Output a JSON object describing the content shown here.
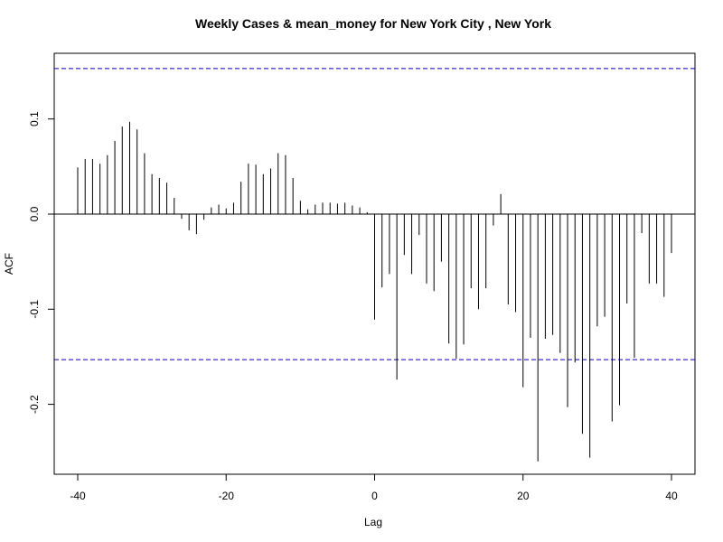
{
  "chart_data": {
    "type": "bar",
    "title": "Weekly Cases & mean_money for New York City , New York",
    "xlabel": "Lag",
    "ylabel": "ACF",
    "xlim": [
      -40,
      40
    ],
    "ylim": [
      -0.27,
      0.18
    ],
    "x_ticks": [
      -40,
      -20,
      0,
      20,
      40
    ],
    "x_tick_labels": [
      "-40",
      "-20",
      "0",
      "20",
      "40"
    ],
    "y_ticks": [
      -0.2,
      -0.1,
      0.0,
      0.1
    ],
    "y_tick_labels": [
      "-0.2",
      "-0.1",
      "0.0",
      "0.1"
    ],
    "confidence_bounds": [
      0.153,
      -0.153
    ],
    "colors": {
      "bars": "#000000",
      "bounds": "#0000CC",
      "zero_line": "#000000"
    },
    "series": [
      {
        "x": [
          -40,
          -39,
          -38,
          -37,
          -36,
          -35,
          -34,
          -33,
          -32,
          -31,
          -30,
          -29,
          -28,
          -27,
          -26,
          -25,
          -24,
          -23,
          -22,
          -21,
          -20,
          -19,
          -18,
          -17,
          -16,
          -15,
          -14,
          -13,
          -12,
          -11,
          -10,
          -9,
          -8,
          -7,
          -6,
          -5,
          -4,
          -3,
          -2,
          -1,
          0,
          1,
          2,
          3,
          4,
          5,
          6,
          7,
          8,
          9,
          10,
          11,
          12,
          13,
          14,
          15,
          16,
          17,
          18,
          19,
          20,
          21,
          22,
          23,
          24,
          25,
          26,
          27,
          28,
          29,
          30,
          31,
          32,
          33,
          34,
          35,
          36,
          37,
          38,
          39,
          40
        ],
        "values": [
          0.049,
          0.058,
          0.058,
          0.053,
          0.062,
          0.077,
          0.092,
          0.097,
          0.089,
          0.064,
          0.042,
          0.038,
          0.033,
          0.017,
          -0.005,
          -0.017,
          -0.021,
          -0.006,
          0.007,
          0.01,
          0.006,
          0.012,
          0.034,
          0.053,
          0.052,
          0.042,
          0.048,
          0.064,
          0.062,
          0.038,
          0.014,
          0.005,
          0.01,
          0.012,
          0.012,
          0.011,
          0.012,
          0.009,
          0.007,
          0.002,
          -0.111,
          -0.077,
          -0.063,
          -0.174,
          -0.043,
          -0.063,
          -0.022,
          -0.073,
          -0.081,
          -0.05,
          -0.136,
          -0.152,
          -0.137,
          -0.078,
          -0.1,
          -0.078,
          -0.012,
          0.021,
          -0.095,
          -0.103,
          -0.182,
          -0.13,
          -0.26,
          -0.131,
          -0.127,
          -0.146,
          -0.203,
          -0.156,
          -0.231,
          -0.256,
          -0.118,
          -0.108,
          -0.218,
          -0.201,
          -0.094,
          -0.151,
          -0.02,
          -0.073,
          -0.073,
          -0.087,
          -0.041
        ]
      }
    ]
  }
}
